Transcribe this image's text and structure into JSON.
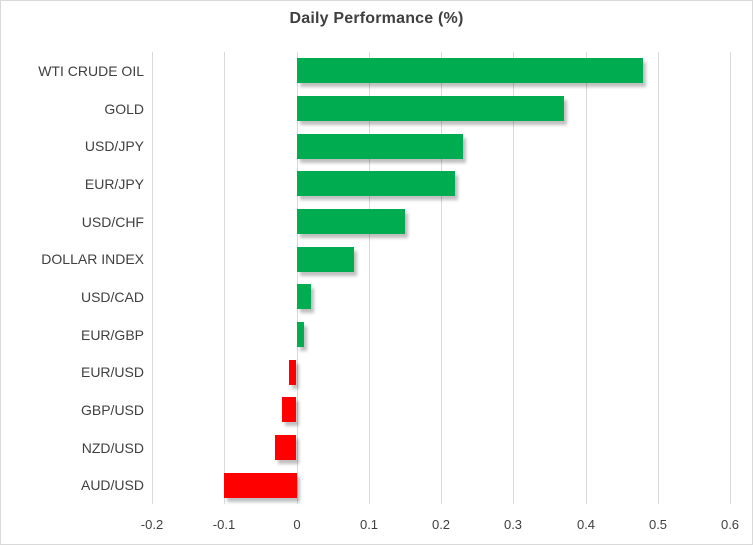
{
  "title": "Daily Performance (%)",
  "chart_data": {
    "type": "bar",
    "orientation": "horizontal",
    "title": "Daily Performance (%)",
    "categories": [
      "WTI CRUDE OIL",
      "GOLD",
      "USD/JPY",
      "EUR/JPY",
      "USD/CHF",
      "DOLLAR INDEX",
      "USD/CAD",
      "EUR/GBP",
      "EUR/USD",
      "GBP/USD",
      "NZD/USD",
      "AUD/USD"
    ],
    "values": [
      0.48,
      0.37,
      0.23,
      0.22,
      0.15,
      0.08,
      0.02,
      0.01,
      -0.01,
      -0.02,
      -0.03,
      -0.1
    ],
    "xlabel": "",
    "ylabel": "",
    "xlim": [
      -0.2,
      0.6
    ],
    "xticks": [
      -0.2,
      -0.1,
      0,
      0.1,
      0.2,
      0.3,
      0.4,
      0.5,
      0.6
    ],
    "xtick_labels": [
      "-0.2",
      "-0.1",
      "0",
      "0.1",
      "0.2",
      "0.3",
      "0.4",
      "0.5",
      "0.6"
    ],
    "grid": true,
    "legend": false,
    "colors": {
      "positive": "#00ac50",
      "negative": "#ff0000",
      "grid": "#d9d9d9",
      "text": "#3f3f3f",
      "border": "#d9d9d9"
    }
  }
}
